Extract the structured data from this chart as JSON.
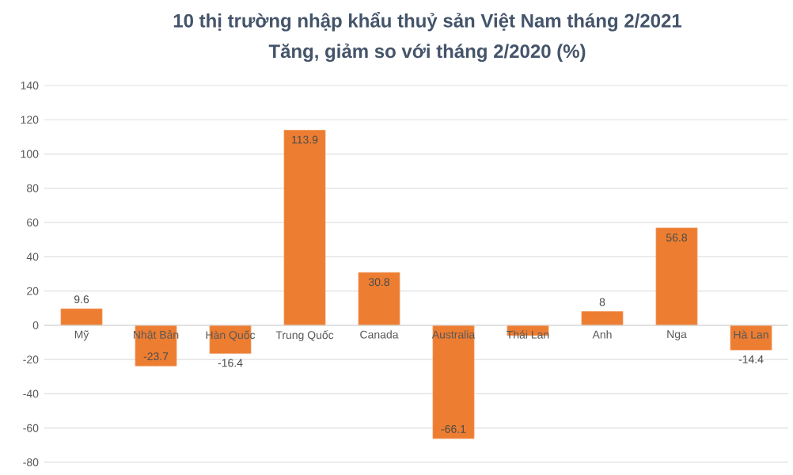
{
  "chart_data": {
    "type": "bar",
    "title": "10 thị trường nhập khẩu thuỷ sản Việt Nam tháng 2/2021",
    "subtitle": "Tăng, giảm so với tháng 2/2020 (%)",
    "categories": [
      "Mỹ",
      "Nhật Bản",
      "Hàn Quốc",
      "Trung Quốc",
      "Canada",
      "Australia",
      "Thái Lan",
      "Anh",
      "Nga",
      "Hà Lan"
    ],
    "values": [
      9.6,
      -23.7,
      -16.4,
      113.9,
      30.8,
      -66.1,
      -6,
      8,
      56.8,
      -14.4
    ],
    "value_labels": [
      "9.6",
      "-23.7",
      "-16.4",
      "113.9",
      "30.8",
      "-66.1",
      null,
      "8",
      "56.8",
      "-14.4"
    ],
    "color": "#ed7d31",
    "ylim": [
      -80,
      140
    ],
    "yticks": [
      -80,
      -60,
      -40,
      -20,
      0,
      20,
      40,
      60,
      80,
      100,
      120,
      140
    ],
    "grid": "y"
  }
}
